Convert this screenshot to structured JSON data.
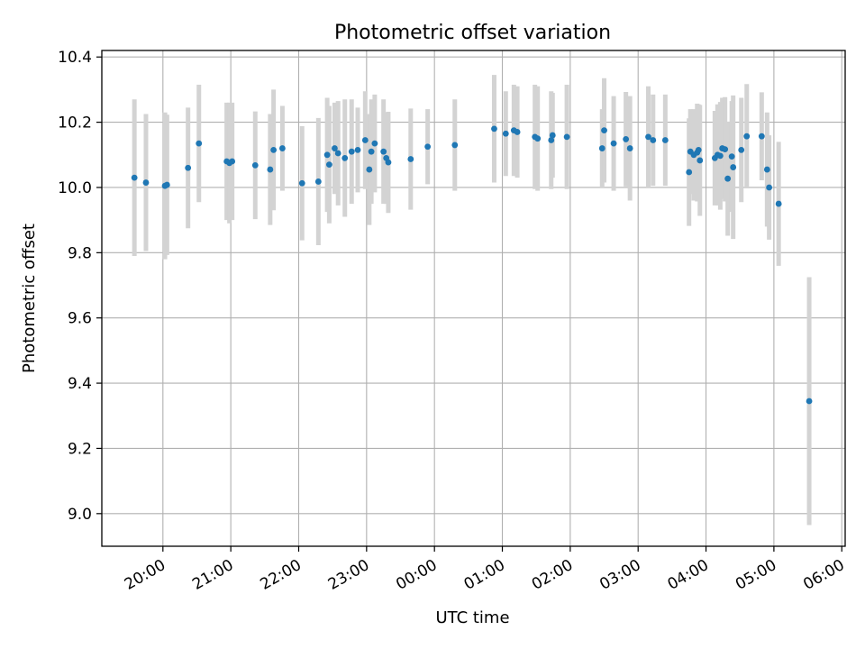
{
  "chart_data": {
    "type": "scatter",
    "title": "Photometric offset variation",
    "xlabel": "UTC time",
    "ylabel": "Photometric offset",
    "x_unit": "hours since 00:00 UTC (negative = previous day)",
    "xlim": [
      -4.9,
      6.05
    ],
    "ylim": [
      8.9,
      10.42
    ],
    "xticks": [
      {
        "value": -4,
        "label": "20:00"
      },
      {
        "value": -3,
        "label": "21:00"
      },
      {
        "value": -2,
        "label": "22:00"
      },
      {
        "value": -1,
        "label": "23:00"
      },
      {
        "value": 0,
        "label": "00:00"
      },
      {
        "value": 1,
        "label": "01:00"
      },
      {
        "value": 2,
        "label": "02:00"
      },
      {
        "value": 3,
        "label": "03:00"
      },
      {
        "value": 4,
        "label": "04:00"
      },
      {
        "value": 5,
        "label": "05:00"
      },
      {
        "value": 6,
        "label": "06:00"
      }
    ],
    "yticks": [
      {
        "value": 9.0,
        "label": "9.0"
      },
      {
        "value": 9.2,
        "label": "9.2"
      },
      {
        "value": 9.4,
        "label": "9.4"
      },
      {
        "value": 9.6,
        "label": "9.6"
      },
      {
        "value": 9.8,
        "label": "9.8"
      },
      {
        "value": 10.0,
        "label": "10.0"
      },
      {
        "value": 10.2,
        "label": "10.2"
      },
      {
        "value": 10.4,
        "label": "10.4"
      }
    ],
    "grid": true,
    "series": [
      {
        "name": "offset",
        "point_color": "#1f77b4",
        "errorbar_color": "#d3d3d3",
        "points": [
          {
            "x": -4.42,
            "y": 10.03,
            "err": 0.24
          },
          {
            "x": -4.25,
            "y": 10.015,
            "err": 0.21
          },
          {
            "x": -3.97,
            "y": 10.005,
            "err": 0.225
          },
          {
            "x": -3.94,
            "y": 10.008,
            "err": 0.215
          },
          {
            "x": -3.63,
            "y": 10.06,
            "err": 0.185
          },
          {
            "x": -3.47,
            "y": 10.135,
            "err": 0.18
          },
          {
            "x": -3.06,
            "y": 10.08,
            "err": 0.18
          },
          {
            "x": -3.02,
            "y": 10.075,
            "err": 0.185
          },
          {
            "x": -2.98,
            "y": 10.08,
            "err": 0.18
          },
          {
            "x": -2.64,
            "y": 10.068,
            "err": 0.165
          },
          {
            "x": -2.42,
            "y": 10.055,
            "err": 0.17
          },
          {
            "x": -2.37,
            "y": 10.115,
            "err": 0.185
          },
          {
            "x": -2.24,
            "y": 10.12,
            "err": 0.13
          },
          {
            "x": -1.95,
            "y": 10.013,
            "err": 0.175
          },
          {
            "x": -1.71,
            "y": 10.018,
            "err": 0.195
          },
          {
            "x": -1.58,
            "y": 10.1,
            "err": 0.175
          },
          {
            "x": -1.55,
            "y": 10.07,
            "err": 0.18
          },
          {
            "x": -1.47,
            "y": 10.12,
            "err": 0.14
          },
          {
            "x": -1.42,
            "y": 10.105,
            "err": 0.16
          },
          {
            "x": -1.32,
            "y": 10.09,
            "err": 0.18
          },
          {
            "x": -1.22,
            "y": 10.11,
            "err": 0.16
          },
          {
            "x": -1.13,
            "y": 10.115,
            "err": 0.13
          },
          {
            "x": -1.02,
            "y": 10.145,
            "err": 0.15
          },
          {
            "x": -0.96,
            "y": 10.055,
            "err": 0.17
          },
          {
            "x": -0.93,
            "y": 10.11,
            "err": 0.16
          },
          {
            "x": -0.88,
            "y": 10.135,
            "err": 0.15
          },
          {
            "x": -0.75,
            "y": 10.11,
            "err": 0.16
          },
          {
            "x": -0.71,
            "y": 10.09,
            "err": 0.14
          },
          {
            "x": -0.68,
            "y": 10.077,
            "err": 0.155
          },
          {
            "x": -0.35,
            "y": 10.087,
            "err": 0.155
          },
          {
            "x": -0.1,
            "y": 10.125,
            "err": 0.115
          },
          {
            "x": 0.3,
            "y": 10.13,
            "err": 0.14
          },
          {
            "x": 0.88,
            "y": 10.18,
            "err": 0.165
          },
          {
            "x": 1.05,
            "y": 10.165,
            "err": 0.13
          },
          {
            "x": 1.17,
            "y": 10.175,
            "err": 0.14
          },
          {
            "x": 1.22,
            "y": 10.17,
            "err": 0.14
          },
          {
            "x": 1.48,
            "y": 10.155,
            "err": 0.16
          },
          {
            "x": 1.52,
            "y": 10.15,
            "err": 0.16
          },
          {
            "x": 1.72,
            "y": 10.145,
            "err": 0.15
          },
          {
            "x": 1.74,
            "y": 10.16,
            "err": 0.13
          },
          {
            "x": 1.95,
            "y": 10.155,
            "err": 0.16
          },
          {
            "x": 2.47,
            "y": 10.12,
            "err": 0.12
          },
          {
            "x": 2.5,
            "y": 10.175,
            "err": 0.16
          },
          {
            "x": 2.64,
            "y": 10.135,
            "err": 0.145
          },
          {
            "x": 2.82,
            "y": 10.148,
            "err": 0.145
          },
          {
            "x": 2.88,
            "y": 10.12,
            "err": 0.16
          },
          {
            "x": 3.15,
            "y": 10.155,
            "err": 0.155
          },
          {
            "x": 3.22,
            "y": 10.145,
            "err": 0.14
          },
          {
            "x": 3.4,
            "y": 10.145,
            "err": 0.14
          },
          {
            "x": 3.75,
            "y": 10.047,
            "err": 0.165
          },
          {
            "x": 3.77,
            "y": 10.11,
            "err": 0.13
          },
          {
            "x": 3.82,
            "y": 10.1,
            "err": 0.14
          },
          {
            "x": 3.87,
            "y": 10.107,
            "err": 0.15
          },
          {
            "x": 3.89,
            "y": 10.115,
            "err": 0.14
          },
          {
            "x": 3.91,
            "y": 10.083,
            "err": 0.17
          },
          {
            "x": 4.13,
            "y": 10.09,
            "err": 0.145
          },
          {
            "x": 4.17,
            "y": 10.1,
            "err": 0.155
          },
          {
            "x": 4.21,
            "y": 10.097,
            "err": 0.165
          },
          {
            "x": 4.24,
            "y": 10.12,
            "err": 0.155
          },
          {
            "x": 4.28,
            "y": 10.117,
            "err": 0.16
          },
          {
            "x": 4.32,
            "y": 10.027,
            "err": 0.175
          },
          {
            "x": 4.38,
            "y": 10.095,
            "err": 0.17
          },
          {
            "x": 4.4,
            "y": 10.062,
            "err": 0.22
          },
          {
            "x": 4.52,
            "y": 10.115,
            "err": 0.16
          },
          {
            "x": 4.6,
            "y": 10.157,
            "err": 0.16
          },
          {
            "x": 4.82,
            "y": 10.157,
            "err": 0.135
          },
          {
            "x": 4.9,
            "y": 10.055,
            "err": 0.175
          },
          {
            "x": 4.93,
            "y": 10.0,
            "err": 0.16
          },
          {
            "x": 5.07,
            "y": 9.95,
            "err": 0.19
          },
          {
            "x": 5.52,
            "y": 9.345,
            "err": 0.38
          }
        ]
      }
    ]
  }
}
